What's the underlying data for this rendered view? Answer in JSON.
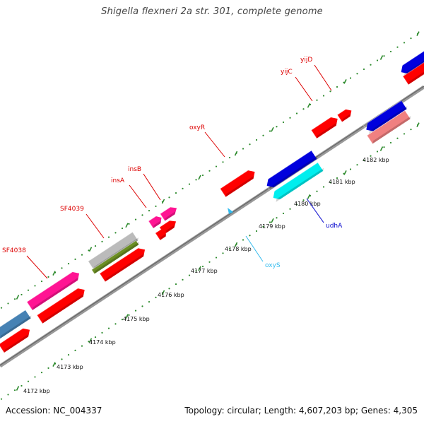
{
  "header": {
    "title": "Shigella flexneri 2a str. 301, complete genome"
  },
  "footer": {
    "accession": "Accession: NC_004337",
    "summary": "Topology: circular; Length: 4,607,203 bp; Genes: 4,305"
  },
  "scale": {
    "unit": "kbp",
    "ticks": [
      {
        "kbp": 4172,
        "label": "4172 kbp"
      },
      {
        "kbp": 4173,
        "label": "4173 kbp"
      },
      {
        "kbp": 4174,
        "label": "4174 kbp"
      },
      {
        "kbp": 4175,
        "label": "4175 kbp"
      },
      {
        "kbp": 4176,
        "label": "4176 kbp"
      },
      {
        "kbp": 4177,
        "label": "4177 kbp"
      },
      {
        "kbp": 4178,
        "label": "4178 kbp"
      },
      {
        "kbp": 4179,
        "label": "4179 kbp"
      },
      {
        "kbp": 4180,
        "label": "4180 kbp"
      },
      {
        "kbp": 4181,
        "label": "4181 kbp"
      },
      {
        "kbp": 4182,
        "label": "4182 kbp"
      }
    ]
  },
  "gene_labels": [
    {
      "name": "SF4038",
      "color": "#dd0000"
    },
    {
      "name": "SF4039",
      "color": "#dd0000"
    },
    {
      "name": "insA",
      "color": "#dd0000"
    },
    {
      "name": "insB",
      "color": "#dd0000"
    },
    {
      "name": "oxyR",
      "color": "#dd0000"
    },
    {
      "name": "yijC",
      "color": "#dd0000"
    },
    {
      "name": "yijD",
      "color": "#dd0000"
    },
    {
      "name": "udhA",
      "color": "#0000cc"
    },
    {
      "name": "oxyS",
      "color": "#33bbee"
    }
  ],
  "colors": {
    "cds": "#ff0000",
    "mobile_element": "#ff1493",
    "gray_feature": "#bbbbbb",
    "olive_feature": "#6b8e23",
    "steelblue_feature": "#4682b4",
    "blue_feature": "#0000dd",
    "cyan_feature": "#00eeee",
    "salmon_feature": "#f08080",
    "backbone": "#888888",
    "tick_outer": "#2e8b2e",
    "tick_inner": "#2e8b2e"
  }
}
